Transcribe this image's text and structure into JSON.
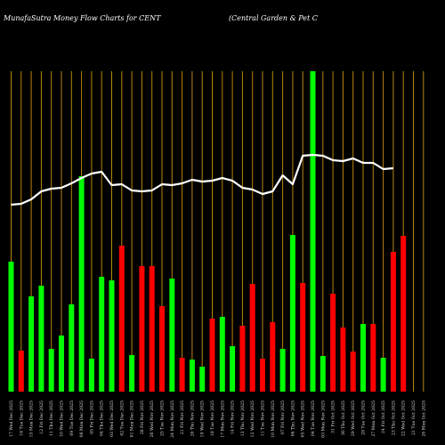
{
  "chart_data": {
    "type": "bar",
    "title": "MunafaSutra  Money Flow  Charts for CENT",
    "subtitle": "(Central Garden  & Pet C",
    "colors": {
      "up": "#00ff00",
      "down": "#ff0000",
      "line": "#ffffff",
      "grid": "#b8860b",
      "background": "#000000"
    },
    "categories": [
      "Wed 17 Dec 2025",
      "Tue 16 Dec 2025",
      "Mon 15 Dec 2025",
      "Fri 12 Dec 2025",
      "Thu 11 Dec 2025",
      "Wed 10 Dec 2025",
      "Tue 09 Dec 2025",
      "Mon 08 Dec 2025",
      "Fri 05 Dec 2025",
      "Thu 04 Dec 2025",
      "Wed 03 Dec 2025",
      "Tue 02 Dec 2025",
      "Mon 01 Dec 2025",
      "Fri 28 Nov 2025",
      "Wed 26 Nov 2025",
      "Tue 25 Nov 2025",
      "Mon 24 Nov 2025",
      "Fri 21 Nov 2025",
      "Thu 20 Nov 2025",
      "Wed 19 Nov 2025",
      "Tue 18 Nov 2025",
      "Mon 17 Nov 2025",
      "Fri 14 Nov 2025",
      "Thu 13 Nov 2025",
      "Wed 12 Nov 2025",
      "Tue 11 Nov 2025",
      "Mon 10 Nov 2025",
      "Fri 07 Nov 2025",
      "Thu 06 Nov 2025",
      "Wed 05 Nov 2025",
      "Tue 04 Nov 2025",
      "Mon 03 Nov 2025",
      "Fri 31 Oct 2025",
      "Thu 30 Oct 2025",
      "Wed 29 Oct 2025",
      "Tue 28 Oct 2025",
      "Mon 27 Oct 2025",
      "Fri 24 Oct 2025",
      "Thu 23 Oct 2025",
      "Wed 22 Oct 2025",
      "Tue 21 Oct 2025",
      "Mon 20 Oct 2025"
    ],
    "xlabels": [
      "17 Wed Dec 2025",
      "16 Tue Dec 2025",
      "15 Mon Dec 2025",
      "12 Fri Dec 2025",
      "11 Thu Dec 2025",
      "10 Wed Dec 2025",
      "09 Tue Dec 2025",
      "08 Mon Dec 2025",
      "05 Fri Dec 2025",
      "04 Thu Dec 2025",
      "03 Wed Dec 2025",
      "02 Tue Dec 2025",
      "01 Mon Dec 2025",
      "28 Fri Nov 2025",
      "26 Wed Nov 2025",
      "25 Tue Nov 2025",
      "24 Mon Nov 2025",
      "21 Fri Nov 2025",
      "20 Thu Nov 2025",
      "19 Wed Nov 2025",
      "18 Tue Nov 2025",
      "17 Mon Nov 2025",
      "14 Fri Nov 2025",
      "13 Thu Nov 2025",
      "12 Wed Nov 2025",
      "11 Tue Nov 2025",
      "10 Mon Nov 2025",
      "07 Fri Nov 2025",
      "06 Thu Nov 2025",
      "05 Wed Nov 2025",
      "04 Tue Nov 2025",
      "03 Mon Nov 2025",
      "31 Fri Oct 2025",
      "30 Thu Oct 2025",
      "29 Wed Oct 2025",
      "28 Tue Oct 2025",
      "27 Mon Oct 2025",
      "24 Fri Oct 2025",
      "23 Thu Oct 2025",
      "22 Wed Oct 2025",
      "21 Tue Oct 2025",
      "20 Mon Oct 2025"
    ],
    "series": [
      {
        "values": [
          146,
          46,
          107,
          119,
          48,
          63,
          98,
          242,
          37,
          129,
          125,
          164,
          41,
          141,
          141,
          96,
          127,
          38,
          36,
          28,
          82,
          84,
          51,
          74,
          121,
          37,
          78,
          48,
          176,
          122,
          360,
          40,
          110,
          72,
          45,
          76,
          76,
          38,
          157,
          175,
          0,
          0
        ],
        "direction": [
          "up",
          "down",
          "up",
          "up",
          "up",
          "up",
          "up",
          "up",
          "up",
          "up",
          "up",
          "down",
          "up",
          "down",
          "down",
          "down",
          "up",
          "down",
          "up",
          "up",
          "down",
          "up",
          "up",
          "down",
          "down",
          "down",
          "down",
          "up",
          "up",
          "down",
          "up",
          "up",
          "down",
          "down",
          "down",
          "up",
          "down",
          "up",
          "down",
          "down",
          "",
          ""
        ]
      },
      {
        "values": [
          210,
          211,
          216,
          225,
          228,
          229,
          234,
          240,
          245,
          247,
          232,
          233,
          226,
          225,
          226,
          233,
          232,
          234,
          238,
          236,
          237,
          240,
          237,
          229,
          227,
          222,
          225,
          243,
          233,
          265,
          266,
          265,
          260,
          259,
          262,
          257,
          257,
          250,
          251,
          0,
          0,
          0
        ]
      }
    ],
    "ylim": [
      0,
      360
    ]
  }
}
